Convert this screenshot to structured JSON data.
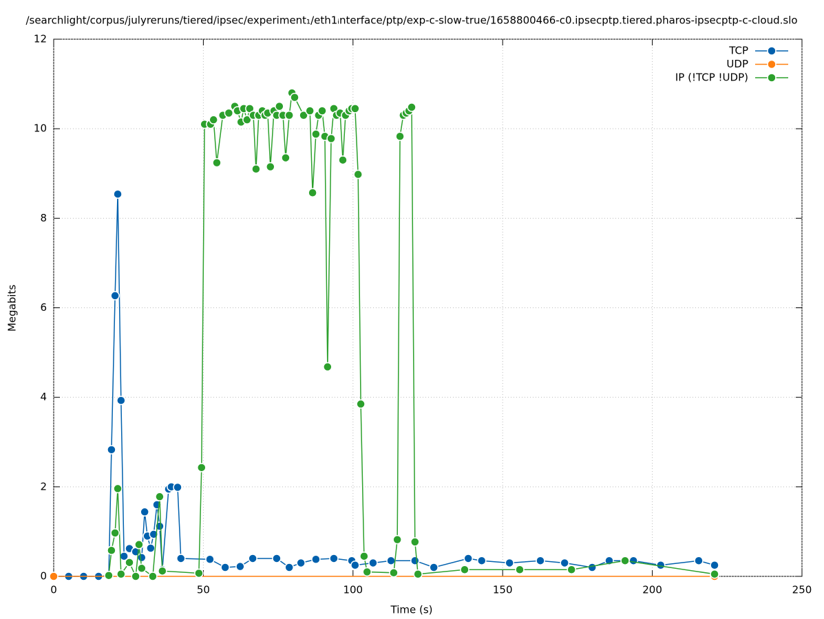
{
  "chart_data": {
    "type": "line",
    "title": "/searchlight/corpus/julyreruns/tiered/ipsec/experiment₁/eth1ᵢnterface/ptp/exp-c-slow-true/1658800466-c0.ipsecptp.tiered.pharos-ipsecptp-c-cloud.slo",
    "xlabel": "Time (s)",
    "ylabel": "Megabits",
    "xlim": [
      0,
      250
    ],
    "ylim": [
      0,
      12
    ],
    "xticks": [
      0,
      50,
      100,
      150,
      200,
      250
    ],
    "yticks": [
      0,
      2,
      4,
      6,
      8,
      10,
      12
    ],
    "grid": true,
    "legend": "top-right",
    "series": [
      {
        "name": "TCP",
        "color": "#0060ad",
        "x": [
          0,
          5,
          10,
          15,
          18.4,
          19.3,
          20.5,
          21.4,
          22.5,
          23.5,
          25.3,
          27.4,
          29.4,
          30.4,
          31.3,
          32.4,
          33.4,
          34.5,
          35.4,
          36.3,
          38.4,
          39.3,
          41.4,
          42.5,
          52.2,
          57.3,
          62.3,
          66.5,
          74.5,
          78.7,
          82.6,
          87.6,
          93.6,
          99.6,
          100.7,
          106.7,
          112.7,
          120.7,
          127,
          138.5,
          143,
          152.3,
          162.6,
          170.7,
          179.9,
          185.6,
          193.7,
          202.8,
          215.5,
          220.8
        ],
        "values": [
          0,
          0,
          0,
          0,
          0.02,
          2.83,
          6.27,
          8.54,
          3.93,
          0.45,
          0.62,
          0.55,
          0.42,
          1.44,
          0.9,
          0.63,
          0.94,
          1.6,
          1.12,
          0.15,
          1.95,
          2.0,
          1.99,
          0.4,
          0.38,
          0.2,
          0.22,
          0.4,
          0.4,
          0.2,
          0.3,
          0.38,
          0.4,
          0.35,
          0.25,
          0.3,
          0.35,
          0.35,
          0.2,
          0.4,
          0.35,
          0.3,
          0.35,
          0.3,
          0.2,
          0.35,
          0.35,
          0.25,
          0.35,
          0.25
        ]
      },
      {
        "name": "UDP",
        "color": "#ff7f0e",
        "x": [
          0,
          220.8
        ],
        "values": [
          0,
          0
        ]
      },
      {
        "name": "IP (!TCP  !UDP)",
        "color": "#2ca02c",
        "x": [
          18.4,
          19.3,
          20.5,
          21.4,
          22.5,
          25.3,
          27.4,
          28.5,
          29.4,
          33.1,
          35.4,
          36.3,
          48.5,
          49.4,
          50.4,
          52.4,
          53.4,
          54.5,
          56.5,
          58.5,
          60.5,
          61.4,
          62.6,
          63.5,
          64.6,
          65.5,
          66.7,
          67.6,
          68.5,
          69.7,
          70.6,
          71.5,
          72.4,
          73.6,
          74.5,
          75.4,
          76.6,
          77.5,
          78.7,
          79.6,
          80.5,
          83.5,
          85.6,
          86.5,
          87.6,
          88.5,
          89.7,
          90.6,
          91.5,
          92.7,
          93.6,
          94.5,
          95.7,
          96.6,
          97.5,
          98.7,
          99.6,
          100.7,
          101.7,
          102.6,
          103.7,
          104.7,
          113.6,
          114.8,
          115.7,
          116.8,
          117.8,
          118.7,
          119.6,
          120.7,
          121.7,
          137.3,
          155.7,
          173,
          190.9,
          220.8
        ],
        "values": [
          0.02,
          0.58,
          0.97,
          1.96,
          0.05,
          0.31,
          0,
          0.71,
          0.18,
          0,
          1.78,
          0.12,
          0.07,
          2.43,
          10.1,
          10.1,
          10.2,
          9.24,
          10.3,
          10.35,
          10.5,
          10.4,
          10.15,
          10.45,
          10.2,
          10.45,
          10.3,
          9.1,
          10.3,
          10.4,
          10.3,
          10.35,
          9.15,
          10.4,
          10.3,
          10.5,
          10.3,
          9.35,
          10.3,
          10.8,
          10.7,
          10.3,
          10.4,
          8.57,
          9.88,
          10.3,
          10.4,
          9.83,
          4.68,
          9.78,
          10.45,
          10.3,
          10.35,
          9.3,
          10.3,
          10.4,
          10.45,
          10.45,
          8.98,
          3.85,
          0.45,
          0.1,
          0.08,
          0.82,
          9.83,
          10.3,
          10.35,
          10.4,
          10.48,
          0.77,
          0.05,
          0.15,
          0.15,
          0.15,
          0.35,
          0.05
        ]
      }
    ]
  }
}
